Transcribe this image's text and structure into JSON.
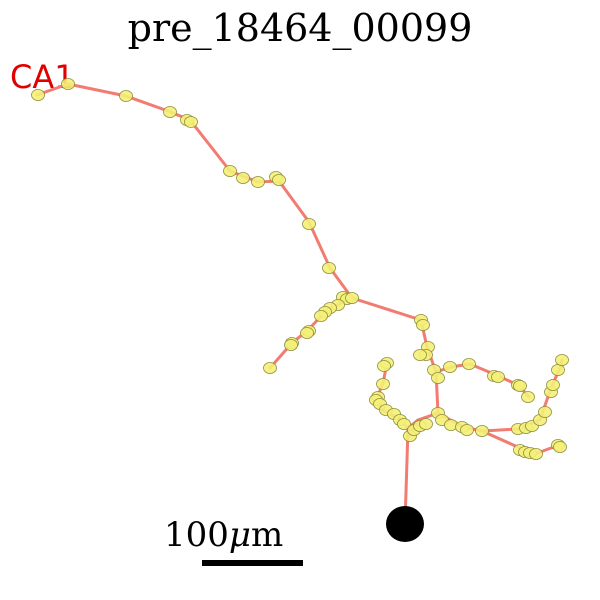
{
  "title": "pre_18464_00099",
  "region_label": "CA1",
  "colors": {
    "region_label": "#e00000",
    "neurite": "#f27b72",
    "synapse_fill": "#f4ef78",
    "synapse_stroke": "#8f8f3a",
    "soma": "#000000",
    "scale_bar": "#000000"
  },
  "scale_bar": {
    "value": "100",
    "unit_prefix": "μ",
    "unit_suffix": "m"
  }
}
